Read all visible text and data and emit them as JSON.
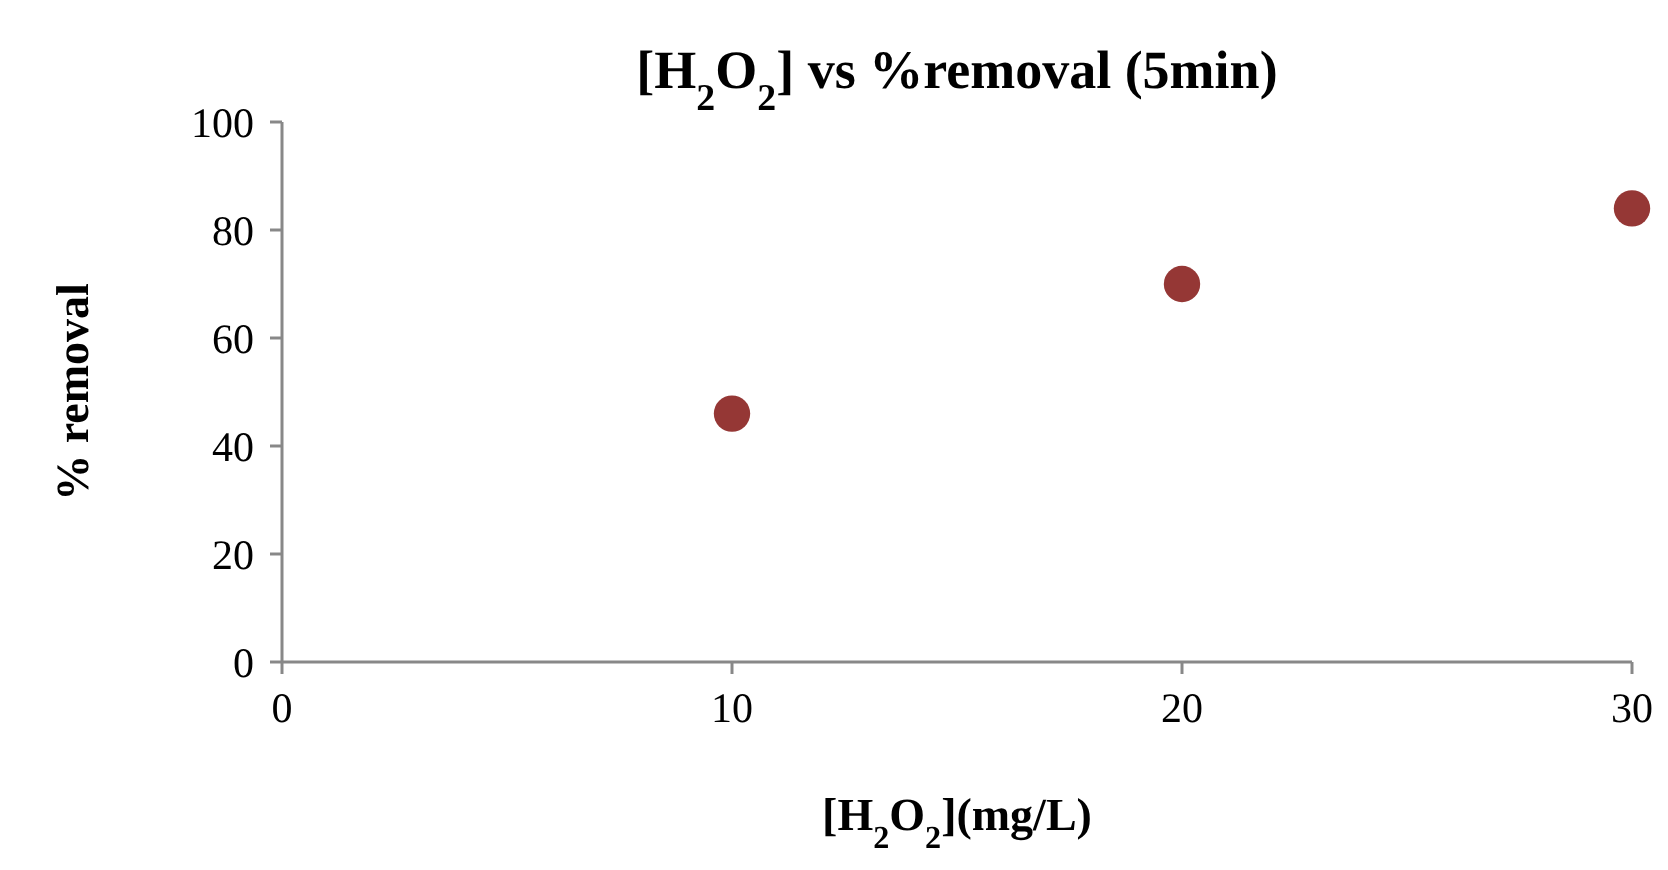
{
  "chart_data": {
    "type": "scatter",
    "title": "[H$_{2}$O$_{2}$] vs %removal (5min)",
    "xlabel": "[H$_{2}$O$_{2}$](mg/L)",
    "ylabel": "% removal",
    "x": [
      10,
      20,
      30
    ],
    "values": [
      46,
      70,
      84
    ],
    "color": "#953735",
    "marker": "circle",
    "xlim": [
      0,
      30
    ],
    "xticks": [
      0,
      10,
      20,
      30
    ],
    "ylim": [
      0,
      100
    ],
    "yticks": [
      0,
      20,
      40,
      60,
      80,
      100
    ],
    "grid": false
  }
}
